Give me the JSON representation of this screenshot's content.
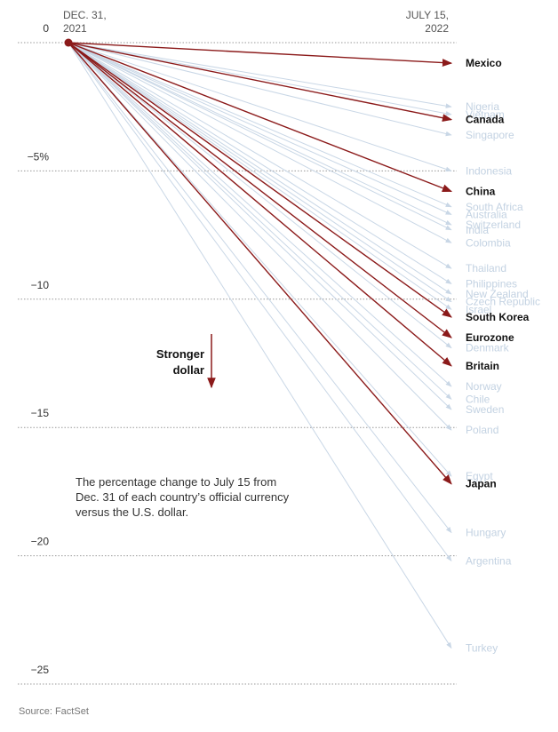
{
  "chart_data": {
    "type": "line",
    "start_label": [
      "DEC. 31,",
      "2021"
    ],
    "end_label": [
      "JULY 15,",
      "2022"
    ],
    "y_ticks": [
      {
        "value": 0,
        "label": "0"
      },
      {
        "value": -5,
        "label": "−5%"
      },
      {
        "value": -10,
        "label": "−10"
      },
      {
        "value": -15,
        "label": "−15"
      },
      {
        "value": -20,
        "label": "−20"
      },
      {
        "value": -25,
        "label": "−25"
      }
    ],
    "ylim": [
      -25,
      0
    ],
    "grid": true,
    "series": [
      {
        "name": "Mexico",
        "value": -0.8,
        "highlight": true
      },
      {
        "name": "Nigeria",
        "value": -2.5,
        "highlight": false
      },
      {
        "name": "Vietnam",
        "value": -2.8,
        "highlight": false
      },
      {
        "name": "Canada",
        "value": -3.0,
        "highlight": true
      },
      {
        "name": "Singapore",
        "value": -3.6,
        "highlight": false
      },
      {
        "name": "Indonesia",
        "value": -5.0,
        "highlight": false
      },
      {
        "name": "China",
        "value": -5.8,
        "highlight": true
      },
      {
        "name": "South Africa",
        "value": -6.4,
        "highlight": false
      },
      {
        "name": "Australia",
        "value": -6.7,
        "highlight": false
      },
      {
        "name": "Switzerland",
        "value": -7.1,
        "highlight": false
      },
      {
        "name": "India",
        "value": -7.3,
        "highlight": false
      },
      {
        "name": "Colombia",
        "value": -7.8,
        "highlight": false
      },
      {
        "name": "Thailand",
        "value": -8.8,
        "highlight": false
      },
      {
        "name": "Philippines",
        "value": -9.4,
        "highlight": false
      },
      {
        "name": "New Zealand",
        "value": -9.8,
        "highlight": false
      },
      {
        "name": "Czech Republic",
        "value": -10.1,
        "highlight": false
      },
      {
        "name": "Israel",
        "value": -10.4,
        "highlight": false
      },
      {
        "name": "South Korea",
        "value": -10.7,
        "highlight": true
      },
      {
        "name": "Eurozone",
        "value": -11.5,
        "highlight": true
      },
      {
        "name": "Denmark",
        "value": -11.9,
        "highlight": false
      },
      {
        "name": "Britain",
        "value": -12.6,
        "highlight": true
      },
      {
        "name": "Norway",
        "value": -13.4,
        "highlight": false
      },
      {
        "name": "Chile",
        "value": -13.9,
        "highlight": false
      },
      {
        "name": "Sweden",
        "value": -14.3,
        "highlight": false
      },
      {
        "name": "Poland",
        "value": -15.1,
        "highlight": false
      },
      {
        "name": "Egypt",
        "value": -16.9,
        "highlight": false
      },
      {
        "name": "Japan",
        "value": -17.2,
        "highlight": true
      },
      {
        "name": "Hungary",
        "value": -19.1,
        "highlight": false
      },
      {
        "name": "Argentina",
        "value": -20.2,
        "highlight": false
      },
      {
        "name": "Turkey",
        "value": -23.6,
        "highlight": false
      }
    ],
    "annotation": [
      "Stronger",
      "dollar"
    ]
  },
  "note": "The percentage change to July 15 from Dec. 31 of each country’s official currency versus the U.S. dollar.",
  "source": "Source: FactSet",
  "colors": {
    "highlight": "#8b1a1a",
    "dim": "#c9d7e6",
    "grid": "#999999"
  }
}
